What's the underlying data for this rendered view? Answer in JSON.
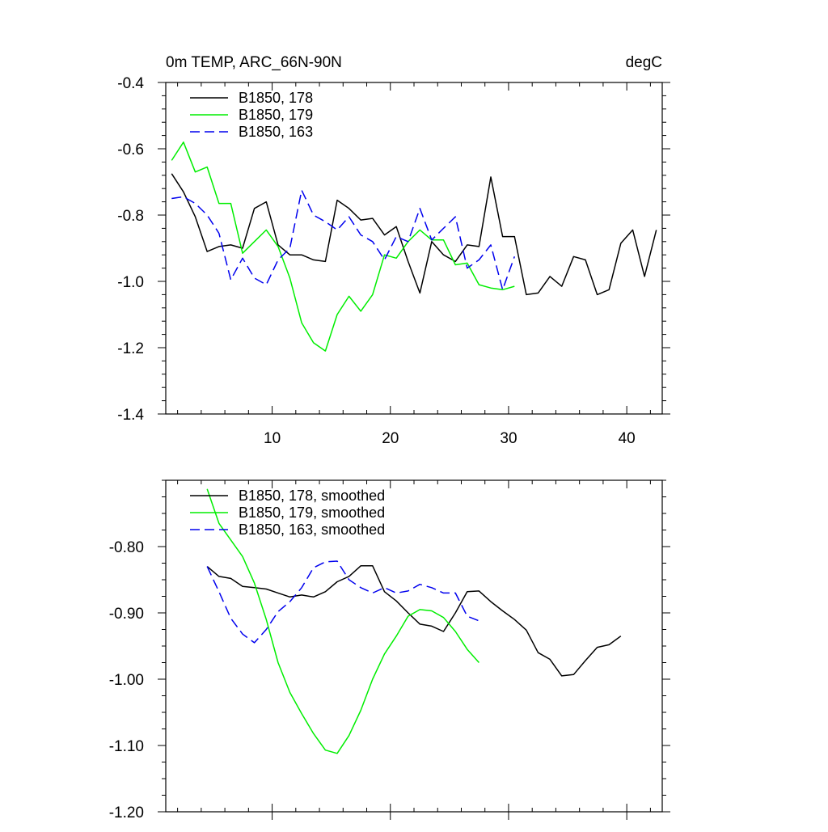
{
  "colors": {
    "black": "#000000",
    "green": "#00ee00",
    "blue": "#0000ee"
  },
  "chart_data": [
    {
      "type": "line",
      "title": "0m TEMP, ARC_66N-90N",
      "units": "degC",
      "xlim": [
        1,
        43
      ],
      "ylim": [
        -1.4,
        -0.4
      ],
      "x_ticks": [
        10,
        20,
        30,
        40
      ],
      "x_tick_labels": [
        "10",
        "20",
        "30",
        "40"
      ],
      "y_ticks": [
        -1.4,
        -1.2,
        -1.0,
        -0.8,
        -0.6,
        -0.4
      ],
      "y_tick_labels": [
        "-1.4",
        "-1.2",
        "-1.0",
        "-0.8",
        "-0.6",
        "-0.4"
      ],
      "legend_position": "top-left",
      "series": [
        {
          "name": "B1850, 178",
          "color": "#000000",
          "dash": "solid",
          "x": [
            1.5,
            2.5,
            3.5,
            4.5,
            5.5,
            6.5,
            7.5,
            8.5,
            9.5,
            10.5,
            11.5,
            12.5,
            13.5,
            14.5,
            15.5,
            16.5,
            17.5,
            18.5,
            19.5,
            20.5,
            21.5,
            22.5,
            23.5,
            24.5,
            25.5,
            26.5,
            27.5,
            28.5,
            29.5,
            30.5,
            31.5,
            32.5,
            33.5,
            34.5,
            35.5,
            36.5,
            37.5,
            38.5,
            39.5,
            40.5,
            41.5,
            42.5
          ],
          "values": [
            -0.675,
            -0.73,
            -0.805,
            -0.91,
            -0.895,
            -0.89,
            -0.9,
            -0.78,
            -0.76,
            -0.89,
            -0.92,
            -0.92,
            -0.935,
            -0.94,
            -0.755,
            -0.78,
            -0.815,
            -0.81,
            -0.86,
            -0.835,
            -0.94,
            -1.035,
            -0.88,
            -0.92,
            -0.94,
            -0.89,
            -0.895,
            -0.685,
            -0.865,
            -0.865,
            -1.04,
            -1.035,
            -0.985,
            -1.015,
            -0.925,
            -0.935,
            -1.04,
            -1.025,
            -0.885,
            -0.845,
            -0.985,
            -0.845
          ]
        },
        {
          "name": "B1850, 179",
          "color": "#00ee00",
          "dash": "solid",
          "x": [
            1.5,
            2.5,
            3.5,
            4.5,
            5.5,
            6.5,
            7.5,
            8.5,
            9.5,
            10.5,
            11.5,
            12.5,
            13.5,
            14.5,
            15.5,
            16.5,
            17.5,
            18.5,
            19.5,
            20.5,
            21.5,
            22.5,
            23.5,
            24.5,
            25.5,
            26.5,
            27.5,
            28.5,
            29.5,
            30.5
          ],
          "values": [
            -0.635,
            -0.58,
            -0.67,
            -0.655,
            -0.765,
            -0.765,
            -0.915,
            -0.88,
            -0.845,
            -0.895,
            -0.99,
            -1.125,
            -1.185,
            -1.21,
            -1.1,
            -1.045,
            -1.09,
            -1.04,
            -0.92,
            -0.93,
            -0.88,
            -0.845,
            -0.875,
            -0.875,
            -0.95,
            -0.945,
            -1.01,
            -1.02,
            -1.025,
            -1.015
          ]
        },
        {
          "name": "B1850, 163",
          "color": "#0000ee",
          "dash": "dashed",
          "x": [
            1.5,
            2.5,
            3.5,
            4.5,
            5.5,
            6.5,
            7.5,
            8.5,
            9.5,
            10.5,
            11.5,
            12.5,
            13.5,
            14.5,
            15.5,
            16.5,
            17.5,
            18.5,
            19.5,
            20.5,
            21.5,
            22.5,
            23.5,
            24.5,
            25.5,
            26.5,
            27.5,
            28.5,
            29.5,
            30.5
          ],
          "values": [
            -0.75,
            -0.745,
            -0.765,
            -0.8,
            -0.855,
            -0.995,
            -0.93,
            -0.99,
            -1.01,
            -0.935,
            -0.9,
            -0.725,
            -0.8,
            -0.82,
            -0.845,
            -0.805,
            -0.86,
            -0.88,
            -0.935,
            -0.865,
            -0.88,
            -0.78,
            -0.875,
            -0.84,
            -0.805,
            -0.96,
            -0.935,
            -0.89,
            -1.025,
            -0.925
          ]
        }
      ]
    },
    {
      "type": "line",
      "title": "",
      "xlim": [
        1,
        43
      ],
      "ylim": [
        -1.2,
        -0.7
      ],
      "x_ticks": [
        10,
        20,
        30,
        40
      ],
      "x_tick_labels": [
        "",
        "",
        "",
        ""
      ],
      "y_ticks": [
        -1.2,
        -1.1,
        -1.0,
        -0.9,
        -0.8
      ],
      "y_tick_labels": [
        "-1.20",
        "-1.10",
        "-1.00",
        "-0.90",
        "-0.80"
      ],
      "legend_position": "top-left",
      "series": [
        {
          "name": "B1850, 178, smoothed",
          "color": "#000000",
          "dash": "solid",
          "x": [
            4.5,
            5.5,
            6.5,
            7.5,
            8.5,
            9.5,
            10.5,
            11.5,
            12.5,
            13.5,
            14.5,
            15.5,
            16.5,
            17.5,
            18.5,
            19.5,
            20.5,
            21.5,
            22.5,
            23.5,
            24.5,
            25.5,
            26.5,
            27.5,
            28.5,
            29.5,
            30.5,
            31.5,
            32.5,
            33.5,
            34.5,
            35.5,
            36.5,
            37.5,
            38.5,
            39.5
          ],
          "values": [
            -0.83,
            -0.845,
            -0.848,
            -0.86,
            -0.862,
            -0.864,
            -0.87,
            -0.876,
            -0.873,
            -0.876,
            -0.868,
            -0.853,
            -0.845,
            -0.829,
            -0.829,
            -0.868,
            -0.882,
            -0.9,
            -0.917,
            -0.92,
            -0.928,
            -0.9,
            -0.868,
            -0.867,
            -0.883,
            -0.897,
            -0.91,
            -0.926,
            -0.96,
            -0.97,
            -0.995,
            -0.993,
            -0.972,
            -0.952,
            -0.948,
            -0.935
          ]
        },
        {
          "name": "B1850, 179, smoothed",
          "color": "#00ee00",
          "dash": "solid",
          "x": [
            4.5,
            5.5,
            6.5,
            7.5,
            8.5,
            9.5,
            10.5,
            11.5,
            12.5,
            13.5,
            14.5,
            15.5,
            16.5,
            17.5,
            18.5,
            19.5,
            20.5,
            21.5,
            22.5,
            23.5,
            24.5,
            25.5,
            26.5,
            27.5
          ],
          "values": [
            -0.713,
            -0.765,
            -0.79,
            -0.815,
            -0.855,
            -0.91,
            -0.975,
            -1.02,
            -1.052,
            -1.082,
            -1.107,
            -1.112,
            -1.085,
            -1.047,
            -1.0,
            -0.962,
            -0.935,
            -0.905,
            -0.895,
            -0.897,
            -0.907,
            -0.928,
            -0.955,
            -0.975
          ]
        },
        {
          "name": "B1850, 163, smoothed",
          "color": "#0000ee",
          "dash": "dashed",
          "x": [
            4.5,
            5.5,
            6.5,
            7.5,
            8.5,
            9.5,
            10.5,
            11.5,
            12.5,
            13.5,
            14.5,
            15.5,
            16.5,
            17.5,
            18.5,
            19.5,
            20.5,
            21.5,
            22.5,
            23.5,
            24.5,
            25.5,
            26.5,
            27.5
          ],
          "values": [
            -0.83,
            -0.868,
            -0.908,
            -0.932,
            -0.945,
            -0.925,
            -0.898,
            -0.883,
            -0.862,
            -0.832,
            -0.823,
            -0.822,
            -0.85,
            -0.862,
            -0.87,
            -0.862,
            -0.87,
            -0.867,
            -0.857,
            -0.862,
            -0.87,
            -0.87,
            -0.905,
            -0.912
          ]
        }
      ]
    }
  ]
}
